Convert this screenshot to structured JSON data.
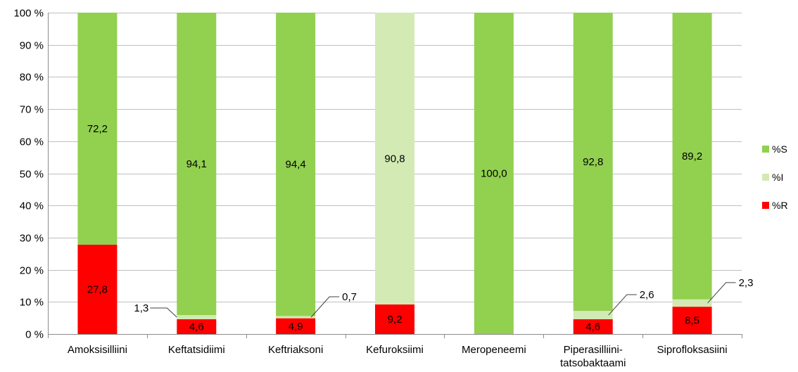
{
  "chart_data": {
    "type": "bar",
    "stacked": true,
    "percent_stacked": true,
    "categories": [
      [
        "Amoksisilliini"
      ],
      [
        "Keftatsidiimi"
      ],
      [
        "Keftriaksoni"
      ],
      [
        "Kefuroksiimi"
      ],
      [
        "Meropeneemi"
      ],
      [
        "Piperasilliini-",
        "tatsobaktaami"
      ],
      [
        "Siprofloksasiini"
      ]
    ],
    "series": [
      {
        "name": "%R",
        "color": "#ff0000",
        "values": [
          27.8,
          4.6,
          4.9,
          9.2,
          0.0,
          4.6,
          8.5
        ],
        "labels": [
          "27,8",
          "4,6",
          "4,9",
          "9,2",
          "",
          "4,6",
          "8,5"
        ]
      },
      {
        "name": "%I",
        "color": "#d3eab4",
        "values": [
          0.0,
          1.3,
          0.7,
          90.8,
          0.0,
          2.6,
          2.3
        ],
        "labels": [
          "",
          "1,3",
          "0,7",
          "90,8",
          "",
          "2,6",
          "2,3"
        ]
      },
      {
        "name": "%S",
        "color": "#92d050",
        "values": [
          72.2,
          94.1,
          94.4,
          0.0,
          100.0,
          92.8,
          89.2
        ],
        "labels": [
          "72,2",
          "94,1",
          "94,4",
          "",
          "100,0",
          "92,8",
          "89,2"
        ]
      }
    ],
    "y_ticks": [
      "0 %",
      "10 %",
      "20 %",
      "30 %",
      "40 %",
      "50 %",
      "60 %",
      "70 %",
      "80 %",
      "90 %",
      "100 %"
    ],
    "ylim": [
      0,
      100
    ],
    "grid": true,
    "legend": {
      "placement": "right",
      "order": [
        "%S",
        "%I",
        "%R"
      ]
    },
    "title": "",
    "xlabel": "",
    "ylabel": ""
  }
}
